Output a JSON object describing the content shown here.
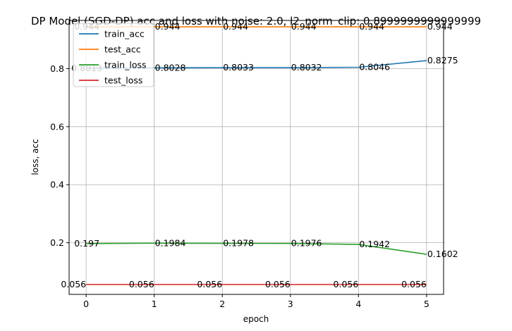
{
  "chart_data": {
    "type": "line",
    "title": "DP Model (SGD-DP) acc and loss with noise: 2.0, l2_norm_clip: 0.8999999999999999",
    "xlabel": "epoch",
    "ylabel": "loss, acc",
    "x": [
      0,
      1,
      2,
      3,
      4,
      5
    ],
    "xlim": [
      -0.25,
      5.25
    ],
    "ylim": [
      0.022,
      0.966
    ],
    "xticks": [
      "0",
      "1",
      "2",
      "3",
      "4",
      "5"
    ],
    "yticks": [
      {
        "value": 0.2,
        "label": "0.2"
      },
      {
        "value": 0.4,
        "label": "0.4"
      },
      {
        "value": 0.6,
        "label": "0.6"
      },
      {
        "value": 0.8,
        "label": "0.8"
      }
    ],
    "grid": true,
    "legend_position": "top-left",
    "series": [
      {
        "name": "train_acc",
        "color": "#1f77b4",
        "values": [
          0.8013,
          0.8028,
          0.8033,
          0.8032,
          0.8046,
          0.8275
        ],
        "labels": [
          "0.8013",
          "0.8028",
          "0.8033",
          "0.8032",
          "0.8046",
          "0.8275"
        ]
      },
      {
        "name": "test_acc",
        "color": "#ff7f0e",
        "values": [
          0.944,
          0.944,
          0.944,
          0.944,
          0.944,
          0.944
        ],
        "labels": [
          "0.944",
          "0.944",
          "0.944",
          "0.944",
          "0.944",
          "0.944"
        ]
      },
      {
        "name": "train_loss",
        "color": "#2ca02c",
        "values": [
          0.197,
          0.1984,
          0.1978,
          0.1976,
          0.1942,
          0.1602
        ],
        "labels": [
          "0.197",
          "0.1984",
          "0.1978",
          "0.1976",
          "0.1942",
          "0.1602"
        ]
      },
      {
        "name": "test_loss",
        "color": "#d62728",
        "values": [
          0.056,
          0.056,
          0.056,
          0.056,
          0.056,
          0.056
        ],
        "labels": [
          "0.056",
          "0.056",
          "0.056",
          "0.056",
          "0.056",
          "0.056"
        ]
      }
    ]
  }
}
